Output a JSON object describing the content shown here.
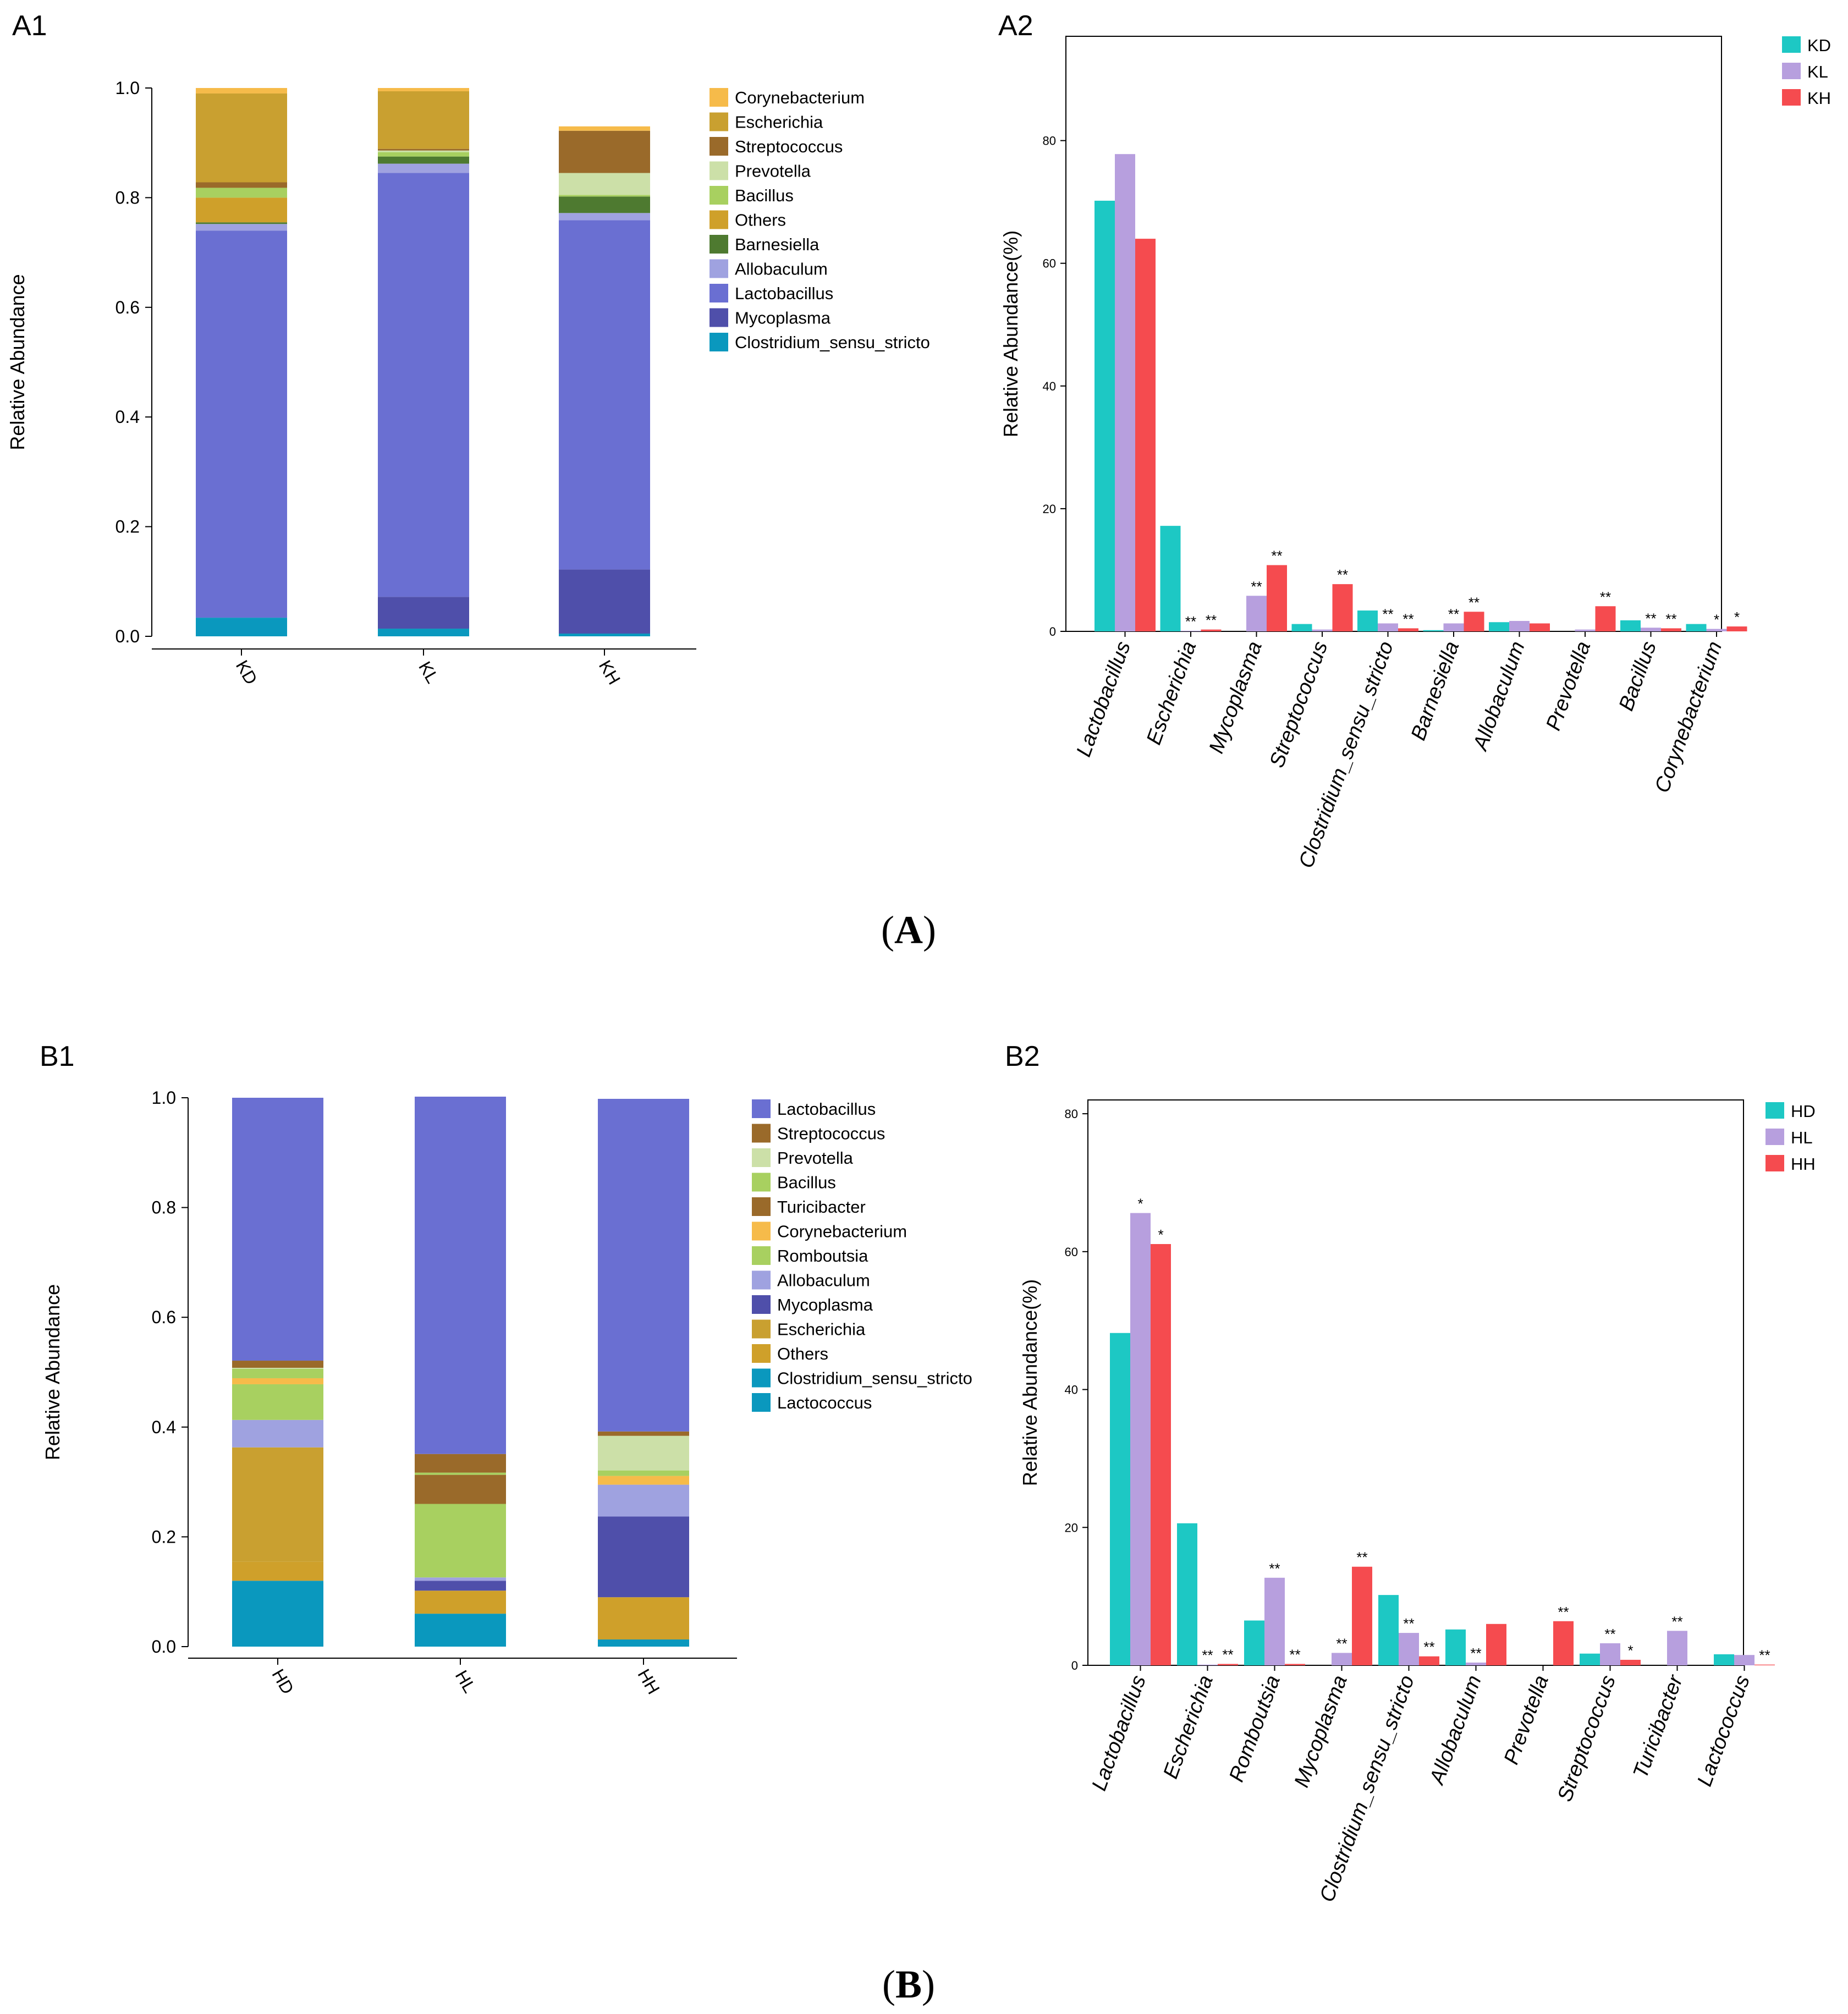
{
  "figure": {
    "label_A": "A",
    "label_B": "B"
  },
  "chart_data": [
    {
      "id": "A1",
      "panel_label": "A1",
      "type": "bar",
      "stacked": true,
      "ylabel": "Relative Abundance",
      "ylim": [
        0,
        1.0
      ],
      "yticks": [
        "0.0",
        "0.2",
        "0.4",
        "0.6",
        "0.8",
        "1.0"
      ],
      "categories": [
        "KD",
        "KL",
        "KH"
      ],
      "legend": [
        "Corynebacterium",
        "Escherichia",
        "Streptococcus",
        "Prevotella",
        "Bacillus",
        "Others",
        "Barnesiella",
        "Allobaculum",
        "Lactobacillus",
        "Mycoplasma",
        "Clostridium_sensu_stricto"
      ],
      "legend_position": "right",
      "series": [
        {
          "name": "Clostridium_sensu_stricto",
          "color": "#0A98BE",
          "values": [
            0.034,
            0.014,
            0.005
          ]
        },
        {
          "name": "Mycoplasma",
          "color": "#4F4FAA",
          "values": [
            0.0,
            0.058,
            0.117
          ]
        },
        {
          "name": "Lactobacillus",
          "color": "#6A6FD2",
          "values": [
            0.706,
            0.773,
            0.637
          ]
        },
        {
          "name": "Allobaculum",
          "color": "#9FA2E0",
          "values": [
            0.012,
            0.017,
            0.013
          ]
        },
        {
          "name": "Barnesiella",
          "color": "#4E7A30",
          "values": [
            0.003,
            0.013,
            0.03
          ]
        },
        {
          "name": "Others",
          "color": "#CFA02A",
          "values": [
            0.045,
            0.0,
            0.0
          ]
        },
        {
          "name": "Bacillus",
          "color": "#A8D060",
          "values": [
            0.018,
            0.008,
            0.003
          ]
        },
        {
          "name": "Prevotella",
          "color": "#CCE0A8",
          "values": [
            0.0,
            0.003,
            0.04
          ]
        },
        {
          "name": "Streptococcus",
          "color": "#9A6A2A",
          "values": [
            0.01,
            0.003,
            0.077
          ]
        },
        {
          "name": "Escherichia",
          "color": "#C9A030",
          "values": [
            0.162,
            0.105,
            0.0
          ]
        },
        {
          "name": "Corynebacterium",
          "color": "#F6BB4A",
          "values": [
            0.01,
            0.006,
            0.008
          ]
        }
      ]
    },
    {
      "id": "A2",
      "panel_label": "A2",
      "type": "bar",
      "ylabel": "Relative Abundance(%)",
      "ylim": [
        0,
        97
      ],
      "yticks": [
        "0",
        "20",
        "40",
        "60",
        "80"
      ],
      "categories": [
        "Lactobacillus",
        "Escherichia",
        "Mycoplasma",
        "Streptococcus",
        "Clostridium_sensu_stricto",
        "Barnesiella",
        "Allobaculum",
        "Prevotella",
        "Bacillus",
        "Corynebacterium"
      ],
      "legend_position": "top-right",
      "series": [
        {
          "name": "KD",
          "color": "#1DC8C4",
          "values": [
            70.2,
            17.2,
            0.0,
            1.2,
            3.4,
            0.2,
            1.5,
            0.0,
            1.8,
            1.2
          ],
          "sig": [
            "",
            "",
            "",
            "",
            "",
            "",
            "",
            "",
            "",
            ""
          ]
        },
        {
          "name": "KL",
          "color": "#B79FDE",
          "values": [
            77.8,
            0.1,
            5.8,
            0.3,
            1.3,
            1.3,
            1.7,
            0.3,
            0.6,
            0.4
          ],
          "sig": [
            "",
            "**",
            "**",
            "",
            "**",
            "**",
            "",
            "",
            "**",
            "*"
          ]
        },
        {
          "name": "KH",
          "color": "#F54B4F",
          "values": [
            64.0,
            0.3,
            10.8,
            7.7,
            0.5,
            3.2,
            1.3,
            4.1,
            0.5,
            0.8
          ],
          "sig": [
            "",
            "**",
            "**",
            "**",
            "**",
            "**",
            "",
            "**",
            "**",
            "*"
          ]
        }
      ]
    },
    {
      "id": "B1",
      "panel_label": "B1",
      "type": "bar",
      "stacked": true,
      "ylabel": "Relative Abundance",
      "ylim": [
        0,
        1.0
      ],
      "yticks": [
        "0.0",
        "0.2",
        "0.4",
        "0.6",
        "0.8",
        "1.0"
      ],
      "categories": [
        "HD",
        "HL",
        "HH"
      ],
      "legend": [
        "Lactobacillus",
        "Streptococcus",
        "Prevotella",
        "Bacillus",
        "Turicibacter",
        "Corynebacterium",
        "Romboutsia",
        "Allobaculum",
        "Mycoplasma",
        "Escherichia",
        "Others",
        "Clostridium_sensu_stricto",
        "Lactococcus"
      ],
      "legend_position": "right",
      "series": [
        {
          "name": "Lactococcus",
          "color": "#0A98BE",
          "values": [
            0.0,
            0.0,
            0.0
          ]
        },
        {
          "name": "Clostridium_sensu_stricto",
          "color": "#0A98BE",
          "values": [
            0.12,
            0.06,
            0.013
          ]
        },
        {
          "name": "Others",
          "color": "#CFA02A",
          "values": [
            0.035,
            0.042,
            0.077
          ]
        },
        {
          "name": "Escherichia",
          "color": "#C9A030",
          "values": [
            0.208,
            0.0,
            0.0
          ]
        },
        {
          "name": "Mycoplasma",
          "color": "#4F4FAA",
          "values": [
            0.0,
            0.018,
            0.147
          ]
        },
        {
          "name": "Allobaculum",
          "color": "#9FA2E0",
          "values": [
            0.05,
            0.006,
            0.058
          ]
        },
        {
          "name": "Romboutsia",
          "color": "#A8D060",
          "values": [
            0.065,
            0.134,
            0.0
          ]
        },
        {
          "name": "Corynebacterium",
          "color": "#F6BB4A",
          "values": [
            0.011,
            0.0,
            0.016
          ]
        },
        {
          "name": "Turicibacter",
          "color": "#9A6A2A",
          "values": [
            0.0,
            0.053,
            0.0
          ]
        },
        {
          "name": "Bacillus",
          "color": "#A8D060",
          "values": [
            0.017,
            0.004,
            0.01
          ]
        },
        {
          "name": "Prevotella",
          "color": "#CCE0A8",
          "values": [
            0.002,
            0.0,
            0.063
          ]
        },
        {
          "name": "Streptococcus",
          "color": "#9A6A2A",
          "values": [
            0.013,
            0.034,
            0.008
          ]
        },
        {
          "name": "Lactobacillus",
          "color": "#6A6FD2",
          "values": [
            0.479,
            0.651,
            0.606
          ]
        }
      ]
    },
    {
      "id": "B2",
      "panel_label": "B2",
      "type": "bar",
      "ylabel": "Relative Abundance(%)",
      "ylim": [
        0,
        82
      ],
      "yticks": [
        "0",
        "20",
        "40",
        "60",
        "80"
      ],
      "categories": [
        "Lactobacillus",
        "Escherichia",
        "Romboutsia",
        "Mycoplasma",
        "Clostridium_sensu_stricto",
        "Allobaculum",
        "Prevotella",
        "Streptococcus",
        "Turicibacter",
        "Lactococcus"
      ],
      "legend_position": "top-right",
      "series": [
        {
          "name": "HD",
          "color": "#1DC8C4",
          "values": [
            48.2,
            20.6,
            6.5,
            0.0,
            10.2,
            5.2,
            0.0,
            1.7,
            0.0,
            1.6
          ],
          "sig": [
            "",
            "",
            "",
            "",
            "",
            "",
            "",
            "",
            "",
            ""
          ]
        },
        {
          "name": "HL",
          "color": "#B79FDE",
          "values": [
            65.6,
            0.1,
            12.7,
            1.8,
            4.7,
            0.4,
            0.0,
            3.2,
            5.0,
            1.5
          ],
          "sig": [
            "*",
            "**",
            "**",
            "**",
            "**",
            "**",
            "",
            "**",
            "**",
            ""
          ]
        },
        {
          "name": "HH",
          "color": "#F54B4F",
          "values": [
            61.1,
            0.2,
            0.2,
            14.3,
            1.3,
            6.0,
            6.4,
            0.8,
            0.0,
            0.1
          ],
          "sig": [
            "*",
            "**",
            "**",
            "**",
            "**",
            "",
            "**",
            "*",
            "",
            "**"
          ]
        }
      ]
    }
  ]
}
